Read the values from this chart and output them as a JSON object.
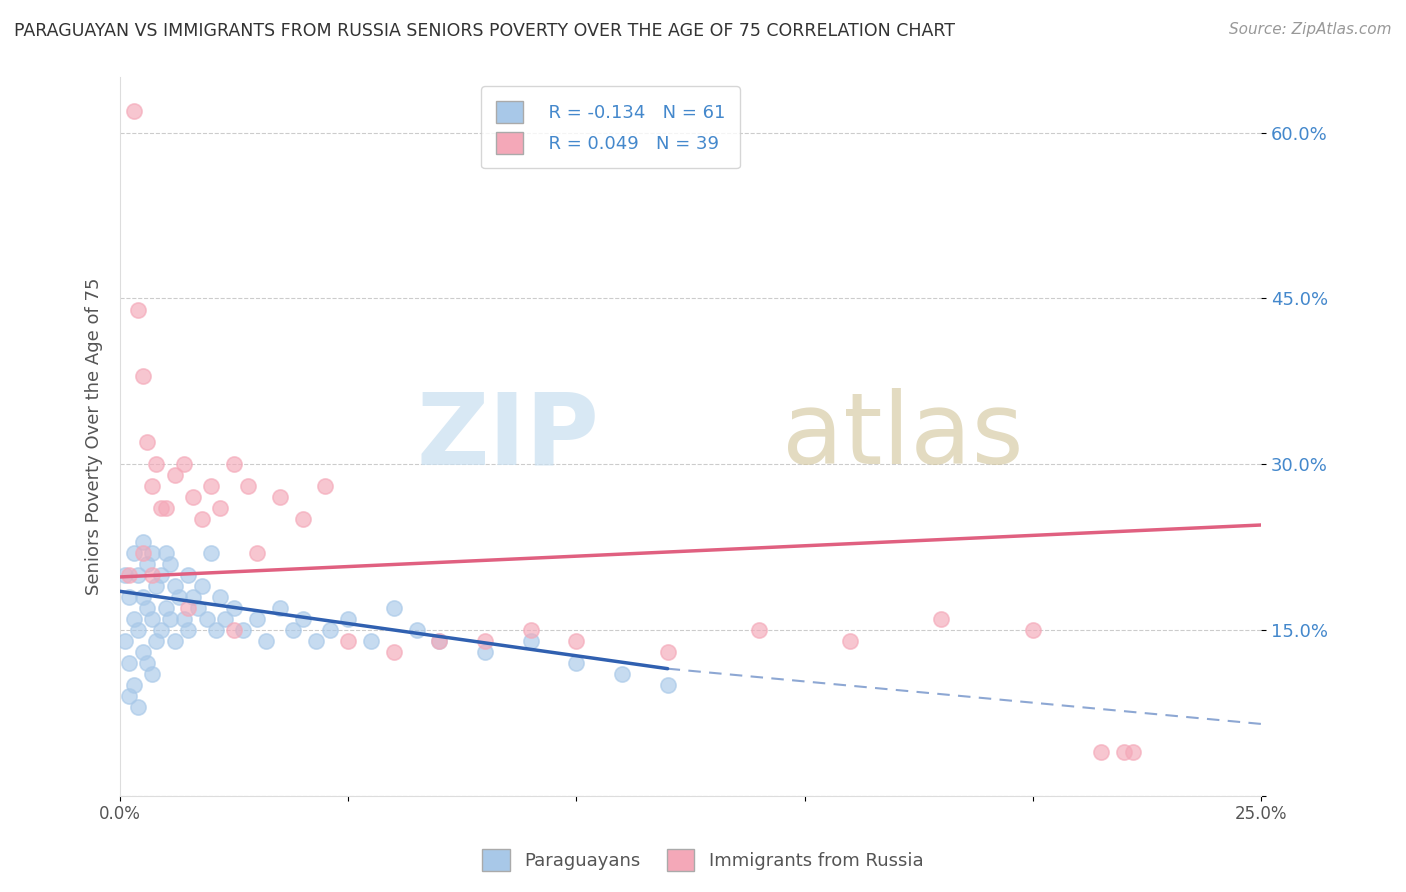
{
  "title": "PARAGUAYAN VS IMMIGRANTS FROM RUSSIA SENIORS POVERTY OVER THE AGE OF 75 CORRELATION CHART",
  "source": "Source: ZipAtlas.com",
  "ylabel": "Seniors Poverty Over the Age of 75",
  "xlim": [
    0.0,
    0.25
  ],
  "ylim": [
    0.0,
    0.65
  ],
  "xticks": [
    0.0,
    0.05,
    0.1,
    0.15,
    0.2,
    0.25
  ],
  "xticklabels": [
    "0.0%",
    "",
    "",
    "",
    "",
    "25.0%"
  ],
  "yticks": [
    0.0,
    0.15,
    0.3,
    0.45,
    0.6
  ],
  "yticklabels": [
    "",
    "15.0%",
    "30.0%",
    "45.0%",
    "60.0%"
  ],
  "legend_R1": "R = -0.134",
  "legend_N1": "N = 61",
  "legend_R2": "R = 0.049",
  "legend_N2": "N = 39",
  "legend_label1": "Paraguayans",
  "legend_label2": "Immigrants from Russia",
  "color1": "#a8c8e8",
  "color2": "#f4a8b8",
  "trend1_color": "#3060b0",
  "trend2_color": "#e06080",
  "background_color": "#ffffff",
  "paraguayan_x": [
    0.001,
    0.001,
    0.002,
    0.002,
    0.002,
    0.003,
    0.003,
    0.003,
    0.004,
    0.004,
    0.004,
    0.005,
    0.005,
    0.005,
    0.006,
    0.006,
    0.006,
    0.007,
    0.007,
    0.007,
    0.008,
    0.008,
    0.009,
    0.009,
    0.01,
    0.01,
    0.011,
    0.011,
    0.012,
    0.012,
    0.013,
    0.014,
    0.015,
    0.015,
    0.016,
    0.017,
    0.018,
    0.019,
    0.02,
    0.021,
    0.022,
    0.023,
    0.025,
    0.027,
    0.03,
    0.032,
    0.035,
    0.038,
    0.04,
    0.043,
    0.046,
    0.05,
    0.055,
    0.06,
    0.065,
    0.07,
    0.08,
    0.09,
    0.1,
    0.11,
    0.12
  ],
  "paraguayan_y": [
    0.2,
    0.14,
    0.18,
    0.12,
    0.09,
    0.22,
    0.16,
    0.1,
    0.2,
    0.15,
    0.08,
    0.23,
    0.18,
    0.13,
    0.21,
    0.17,
    0.12,
    0.22,
    0.16,
    0.11,
    0.19,
    0.14,
    0.2,
    0.15,
    0.22,
    0.17,
    0.21,
    0.16,
    0.19,
    0.14,
    0.18,
    0.16,
    0.2,
    0.15,
    0.18,
    0.17,
    0.19,
    0.16,
    0.22,
    0.15,
    0.18,
    0.16,
    0.17,
    0.15,
    0.16,
    0.14,
    0.17,
    0.15,
    0.16,
    0.14,
    0.15,
    0.16,
    0.14,
    0.17,
    0.15,
    0.14,
    0.13,
    0.14,
    0.12,
    0.11,
    0.1
  ],
  "russia_x": [
    0.002,
    0.003,
    0.004,
    0.005,
    0.006,
    0.007,
    0.008,
    0.009,
    0.01,
    0.012,
    0.014,
    0.016,
    0.018,
    0.02,
    0.022,
    0.025,
    0.028,
    0.03,
    0.035,
    0.04,
    0.045,
    0.05,
    0.06,
    0.07,
    0.08,
    0.09,
    0.1,
    0.12,
    0.14,
    0.16,
    0.18,
    0.2,
    0.215,
    0.22,
    0.222,
    0.005,
    0.007,
    0.015,
    0.025
  ],
  "russia_y": [
    0.2,
    0.62,
    0.44,
    0.38,
    0.32,
    0.28,
    0.3,
    0.26,
    0.26,
    0.29,
    0.3,
    0.27,
    0.25,
    0.28,
    0.26,
    0.3,
    0.28,
    0.22,
    0.27,
    0.25,
    0.28,
    0.14,
    0.13,
    0.14,
    0.14,
    0.15,
    0.14,
    0.13,
    0.15,
    0.14,
    0.16,
    0.15,
    0.04,
    0.04,
    0.04,
    0.22,
    0.2,
    0.17,
    0.15
  ],
  "trend1_x_solid_end": 0.12,
  "trend1_x_end": 0.25,
  "trend2_x_end": 0.25,
  "trend1_y_start": 0.185,
  "trend1_y_solid_end": 0.115,
  "trend1_y_end": 0.065,
  "trend2_y_start": 0.198,
  "trend2_y_end": 0.245
}
